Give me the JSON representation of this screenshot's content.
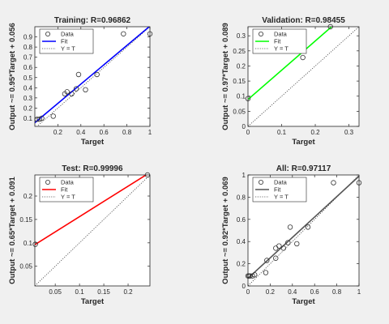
{
  "chart_data": [
    {
      "type": "scatter",
      "title": "Training: R=0.96862",
      "xlabel": "Target",
      "ylabel": "Output ~= 0.95*Target + 0.056",
      "xlim": [
        0,
        1
      ],
      "ylim": [
        0.02,
        1.0
      ],
      "xticks": [
        0.2,
        0.4,
        0.6,
        0.8,
        1
      ],
      "yticks": [
        0.1,
        0.2,
        0.3,
        0.4,
        0.5,
        0.6,
        0.7,
        0.8,
        0.9
      ],
      "ytick_labels": [
        "0.1",
        "0.2",
        "0.3",
        "0.4",
        "0.5",
        "0.6",
        "0.7",
        "0.8",
        "0.9"
      ],
      "fit": {
        "slope": 0.95,
        "intercept": 0.056,
        "color": "#0000ff"
      },
      "points": [
        [
          0.02,
          0.09
        ],
        [
          0.04,
          0.09
        ],
        [
          0.06,
          0.1
        ],
        [
          0.16,
          0.12
        ],
        [
          0.26,
          0.34
        ],
        [
          0.28,
          0.36
        ],
        [
          0.32,
          0.34
        ],
        [
          0.36,
          0.39
        ],
        [
          0.38,
          0.53
        ],
        [
          0.44,
          0.38
        ],
        [
          0.54,
          0.53
        ],
        [
          0.77,
          0.93
        ],
        [
          1.0,
          0.93
        ]
      ],
      "legend": [
        "Data",
        "Fit",
        "Y = T"
      ]
    },
    {
      "type": "scatter",
      "title": "Validation: R=0.98455",
      "xlabel": "Target",
      "ylabel": "Output ~= 0.97*Target + 0.089",
      "xlim": [
        0,
        0.33
      ],
      "ylim": [
        0,
        0.33
      ],
      "xticks": [
        0,
        0.1,
        0.2,
        0.3
      ],
      "yticks": [
        0,
        0.05,
        0.1,
        0.15,
        0.2,
        0.25,
        0.3
      ],
      "ytick_labels": [
        "0",
        "0.05",
        "0.1",
        "0.15",
        "0.2",
        "0.25",
        "0.3"
      ],
      "fit": {
        "slope": 0.97,
        "intercept": 0.089,
        "color": "#00ff00"
      },
      "points": [
        [
          0.0,
          0.092
        ],
        [
          0.163,
          0.228
        ],
        [
          0.245,
          0.33
        ]
      ],
      "legend": [
        "Data",
        "Fit",
        "Y = T"
      ]
    },
    {
      "type": "scatter",
      "title": "Test: R=0.99996",
      "xlabel": "Target",
      "ylabel": "Output ~= 0.65*Target + 0.091",
      "xlim": [
        0.008,
        0.245
      ],
      "ylim": [
        0.008,
        0.245
      ],
      "xticks": [
        0.05,
        0.1,
        0.15,
        0.2
      ],
      "yticks": [
        0.05,
        0.1,
        0.15,
        0.2
      ],
      "ytick_labels": [
        "0.05",
        "0.1",
        "0.15",
        "0.2"
      ],
      "fit": {
        "slope": 0.65,
        "intercept": 0.091,
        "color": "#ff0000"
      },
      "points": [
        [
          0.009,
          0.097
        ],
        [
          0.24,
          0.245
        ]
      ],
      "legend": [
        "Data",
        "Fit",
        "Y = T"
      ]
    },
    {
      "type": "scatter",
      "title": "All: R=0.97117",
      "xlabel": "Target",
      "ylabel": "Output ~= 0.92*Target + 0.069",
      "xlim": [
        0,
        1
      ],
      "ylim": [
        0,
        1
      ],
      "xticks": [
        0,
        0.2,
        0.4,
        0.6,
        0.8,
        1
      ],
      "yticks": [
        0,
        0.2,
        0.4,
        0.6,
        0.8,
        1
      ],
      "ytick_labels": [
        "0",
        "0.2",
        "0.4",
        "0.6",
        "0.8",
        "1"
      ],
      "fit": {
        "slope": 0.92,
        "intercept": 0.069,
        "color": "#555555"
      },
      "points": [
        [
          0.0,
          0.09
        ],
        [
          0.01,
          0.09
        ],
        [
          0.02,
          0.09
        ],
        [
          0.04,
          0.09
        ],
        [
          0.06,
          0.1
        ],
        [
          0.16,
          0.12
        ],
        [
          0.17,
          0.23
        ],
        [
          0.25,
          0.25
        ],
        [
          0.25,
          0.34
        ],
        [
          0.28,
          0.36
        ],
        [
          0.32,
          0.34
        ],
        [
          0.36,
          0.39
        ],
        [
          0.38,
          0.53
        ],
        [
          0.44,
          0.38
        ],
        [
          0.54,
          0.53
        ],
        [
          0.77,
          0.93
        ],
        [
          1.0,
          0.93
        ]
      ],
      "legend": [
        "Data",
        "Fit",
        "Y = T"
      ]
    }
  ]
}
